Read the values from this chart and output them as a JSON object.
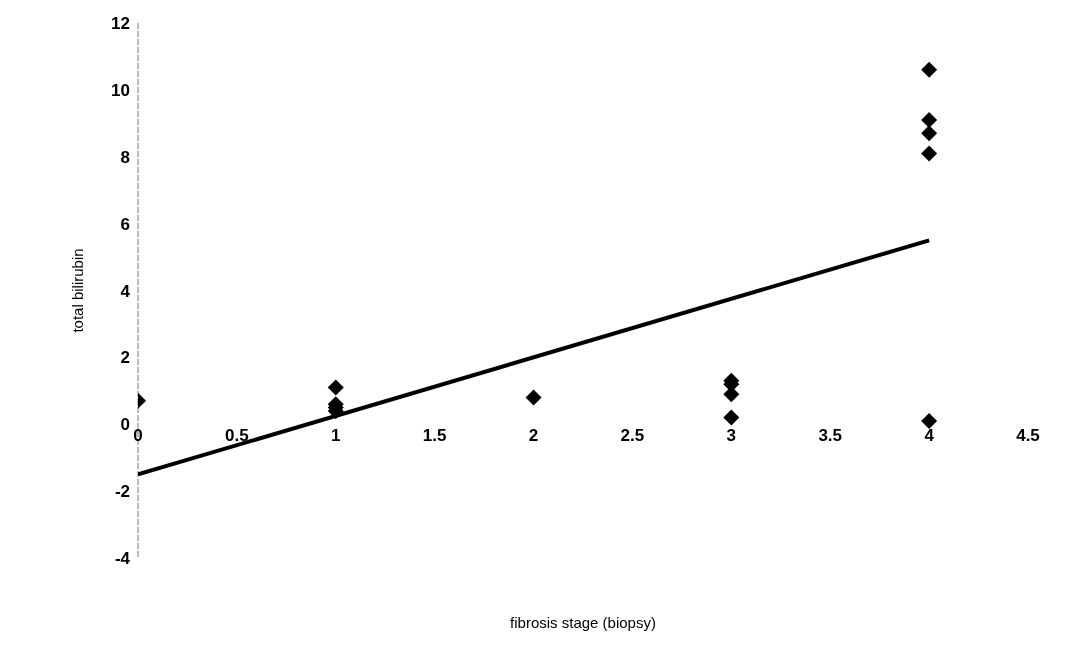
{
  "chart_data": {
    "type": "scatter",
    "xlabel": "fibrosis stage (biopsy)",
    "ylabel": "total bilirubin",
    "xlim": [
      0,
      4.5
    ],
    "ylim": [
      -4,
      12
    ],
    "xticks": [
      0,
      0.5,
      1,
      1.5,
      2,
      2.5,
      3,
      3.5,
      4,
      4.5
    ],
    "yticks": [
      -4,
      -2,
      0,
      2,
      4,
      6,
      8,
      10,
      12
    ],
    "grid": false,
    "series": [
      {
        "type": "scatter",
        "marker": "diamond",
        "color": "#000000",
        "x": [
          0,
          1,
          1,
          1,
          1,
          2,
          3,
          3,
          3,
          3,
          4,
          4,
          4,
          4,
          4
        ],
        "values": [
          0.7,
          1.1,
          0.6,
          0.5,
          0.4,
          0.8,
          1.3,
          1.2,
          0.9,
          0.2,
          10.6,
          9.1,
          8.7,
          8.1,
          0.1
        ]
      },
      {
        "type": "line",
        "color": "#000000",
        "x": [
          0,
          4
        ],
        "values": [
          -1.5,
          5.5
        ]
      }
    ]
  }
}
